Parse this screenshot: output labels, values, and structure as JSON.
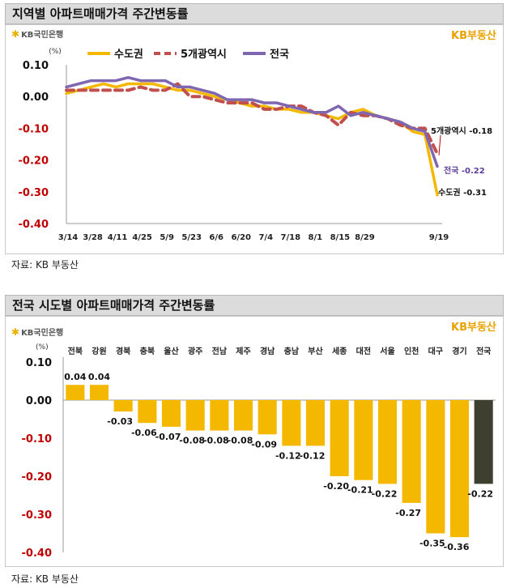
{
  "chart_data": [
    {
      "type": "line",
      "title": "지역별 아파트매매가격 주간변동률",
      "ylabel": "(%)",
      "ylim": [
        -0.4,
        0.1
      ],
      "yticks": [
        "0.10",
        "0.00",
        "-0.10",
        "-0.20",
        "-0.30",
        "-0.40"
      ],
      "x_tick_labels": [
        "3/14",
        "3/28",
        "4/11",
        "4/25",
        "5/9",
        "5/23",
        "6/6",
        "6/20",
        "7/4",
        "7/18",
        "8/1",
        "8/15",
        "8/29",
        "9/19"
      ],
      "legend": "top",
      "series": [
        {
          "name": "수도권",
          "color": "#f5b800",
          "style": "solid",
          "values": [
            0.01,
            0.02,
            0.03,
            0.04,
            0.03,
            0.04,
            0.04,
            0.04,
            0.03,
            0.02,
            0.02,
            0.01,
            0.0,
            -0.01,
            -0.02,
            -0.03,
            -0.03,
            -0.04,
            -0.04,
            -0.05,
            -0.05,
            -0.06,
            -0.07,
            -0.05,
            -0.04,
            -0.06,
            -0.07,
            -0.08,
            -0.11,
            -0.12,
            -0.31
          ]
        },
        {
          "name": "5개광역시",
          "color": "#c0504d",
          "style": "dashed",
          "values": [
            0.02,
            0.02,
            0.02,
            0.02,
            0.02,
            0.02,
            0.03,
            0.02,
            0.02,
            0.04,
            0.0,
            0.0,
            -0.01,
            -0.02,
            -0.02,
            -0.02,
            -0.04,
            -0.04,
            -0.03,
            -0.03,
            -0.05,
            -0.06,
            -0.09,
            -0.05,
            -0.06,
            -0.06,
            -0.07,
            -0.09,
            -0.1,
            -0.1,
            -0.18
          ]
        },
        {
          "name": "전국",
          "color": "#7f66b0",
          "style": "solid",
          "values": [
            0.03,
            0.04,
            0.05,
            0.05,
            0.05,
            0.06,
            0.05,
            0.05,
            0.05,
            0.03,
            0.03,
            0.02,
            0.01,
            -0.01,
            -0.01,
            -0.01,
            -0.02,
            -0.02,
            -0.03,
            -0.04,
            -0.05,
            -0.05,
            -0.03,
            -0.06,
            -0.05,
            -0.06,
            -0.07,
            -0.08,
            -0.1,
            -0.11,
            -0.22
          ]
        }
      ],
      "end_labels": [
        {
          "series": "5개광역시",
          "text": "5개광역시 -0.18"
        },
        {
          "series": "전국",
          "text": "전국 -0.22"
        },
        {
          "series": "수도권",
          "text": "수도권 -0.31"
        }
      ],
      "grid": false
    },
    {
      "type": "bar",
      "title": "전국 시도별 아파트매매가격 주간변동률",
      "ylabel": "(%)",
      "ylim": [
        -0.4,
        0.1
      ],
      "yticks": [
        "0.10",
        "0.00",
        "-0.10",
        "-0.20",
        "-0.30",
        "-0.40"
      ],
      "categories": [
        "전북",
        "강원",
        "경북",
        "충북",
        "울산",
        "광주",
        "전남",
        "제주",
        "경남",
        "충남",
        "부산",
        "세종",
        "대전",
        "서울",
        "인천",
        "대구",
        "경기",
        "전국"
      ],
      "values": [
        0.04,
        0.04,
        -0.03,
        -0.06,
        -0.07,
        -0.08,
        -0.08,
        -0.08,
        -0.09,
        -0.12,
        -0.12,
        -0.2,
        -0.21,
        -0.22,
        -0.27,
        -0.35,
        -0.36,
        -0.22
      ],
      "value_labels": [
        "0.04",
        "0.04",
        "-0.03",
        "-0.06",
        "-0.07",
        "-0.08",
        "-0.08",
        "-0.08",
        "-0.09",
        "-0.12",
        "-0.12",
        "-0.20",
        "-0.21",
        "-0.22",
        "-0.27",
        "-0.35",
        "-0.36",
        "-0.22"
      ],
      "bar_color": "#f5b800",
      "highlight_color": "#3f3f2f",
      "highlight_category": "전국",
      "grid": false
    }
  ],
  "branding": {
    "bank_logo": "KB국민은행",
    "right_logo": "KB부동산"
  },
  "source_text": "자료: KB 부동산"
}
